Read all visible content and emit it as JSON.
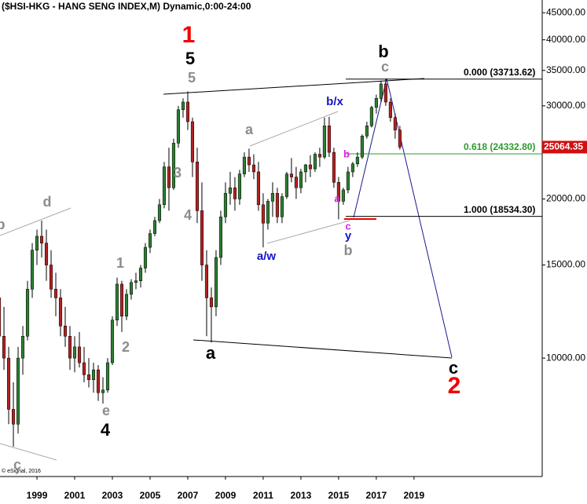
{
  "chart_data": {
    "type": "candlestick",
    "title": "($HSI-HKG - HANG SENG INDEX,M) Dynamic,0:00-24:00",
    "credit": "© eSignal, 2016",
    "log_scale": true,
    "up_color": "#2e7d32",
    "down_color": "#b22222",
    "x": [
      1997,
      1997.25,
      1997.5,
      1997.75,
      1998,
      1998.25,
      1998.5,
      1998.75,
      1999,
      1999.25,
      1999.5,
      1999.75,
      2000,
      2000.25,
      2000.5,
      2000.75,
      2001,
      2001.25,
      2001.5,
      2001.75,
      2002,
      2002.25,
      2002.5,
      2002.75,
      2003,
      2003.25,
      2003.5,
      2003.75,
      2004,
      2004.25,
      2004.5,
      2004.75,
      2005,
      2005.25,
      2005.5,
      2005.75,
      2006,
      2006.25,
      2006.5,
      2006.75,
      2007,
      2007.25,
      2007.5,
      2007.75,
      2008,
      2008.25,
      2008.5,
      2008.75,
      2009,
      2009.25,
      2009.5,
      2009.75,
      2010,
      2010.25,
      2010.5,
      2010.75,
      2011,
      2011.25,
      2011.5,
      2011.75,
      2012,
      2012.25,
      2012.5,
      2012.75,
      2013,
      2013.25,
      2013.5,
      2013.75,
      2014,
      2014.25,
      2014.5,
      2014.75,
      2015,
      2015.25,
      2015.5,
      2015.75,
      2016,
      2016.25,
      2016.5,
      2016.75,
      2017,
      2017.25,
      2017.5,
      2017.75,
      2018,
      2018.25
    ],
    "open": [
      13000,
      11000,
      10000,
      8000,
      7500,
      10000,
      11000,
      13500,
      16000,
      17000,
      16500,
      15000,
      13500,
      13000,
      11500,
      11000,
      10000,
      10500,
      9800,
      9300,
      9100,
      9500,
      8600,
      8700,
      9800,
      11800,
      13800,
      12000,
      13200,
      13900,
      14000,
      14800,
      16200,
      17200,
      18200,
      19500,
      23000,
      21000,
      25500,
      29500,
      30500,
      28000,
      23500,
      19000,
      15000,
      13000,
      12500,
      15500,
      18500,
      20500,
      21000,
      20000,
      22300,
      24000,
      23200,
      22500,
      19500,
      18000,
      19800,
      20500,
      18500,
      20200,
      22300,
      22000,
      21000,
      22500,
      23200,
      22800,
      24300,
      24000,
      27500,
      24500,
      21500,
      19800,
      20800,
      22500,
      23300,
      24000,
      26300,
      27500,
      29800,
      31000,
      33000,
      30500,
      28500,
      27000
    ],
    "high": [
      14000,
      12500,
      10500,
      9000,
      10500,
      11500,
      14000,
      16500,
      17500,
      18200,
      17500,
      16000,
      14500,
      13500,
      12500,
      11500,
      11000,
      11200,
      10500,
      10000,
      9800,
      9700,
      9200,
      10000,
      12000,
      14200,
      14000,
      13500,
      14100,
      14500,
      15000,
      16500,
      17500,
      18500,
      20000,
      23500,
      25000,
      26000,
      30000,
      31000,
      31950,
      28500,
      25000,
      21500,
      16000,
      13600,
      16000,
      19000,
      21500,
      22500,
      22000,
      22700,
      24500,
      24900,
      24300,
      23500,
      20500,
      20000,
      21500,
      21000,
      20500,
      22500,
      23900,
      23000,
      22800,
      23300,
      24200,
      24500,
      25000,
      28500,
      28600,
      25000,
      22000,
      21000,
      23000,
      23500,
      24500,
      26500,
      28000,
      30000,
      31500,
      33480,
      33700,
      31000,
      29000,
      27500
    ],
    "low": [
      10000,
      9500,
      7500,
      6800,
      7200,
      9300,
      10800,
      13000,
      15000,
      15500,
      14000,
      13000,
      12000,
      11000,
      10500,
      9500,
      9400,
      9600,
      9000,
      8800,
      8600,
      8300,
      8200,
      8600,
      9700,
      11500,
      11200,
      11800,
      12900,
      13500,
      13600,
      14500,
      15800,
      17000,
      18000,
      19200,
      19000,
      20800,
      25000,
      28500,
      27000,
      22000,
      18000,
      14000,
      11000,
      10700,
      12000,
      15000,
      18000,
      19500,
      19000,
      19500,
      22000,
      22500,
      21800,
      19000,
      16200,
      17500,
      18500,
      18000,
      18000,
      20000,
      21500,
      20000,
      20500,
      21500,
      22000,
      22500,
      23000,
      23800,
      24000,
      21000,
      18300,
      19500,
      20500,
      22000,
      23000,
      23800,
      26000,
      27300,
      29000,
      30500,
      30000,
      28000,
      26000,
      24800
    ],
    "close": [
      11000,
      10000,
      8000,
      7500,
      10000,
      11000,
      13500,
      16000,
      17000,
      16500,
      15000,
      13500,
      13000,
      11500,
      11000,
      10000,
      10500,
      9800,
      9300,
      9100,
      9500,
      8600,
      8700,
      9800,
      11800,
      13800,
      12000,
      13200,
      13900,
      14000,
      14800,
      16200,
      17200,
      18200,
      19500,
      23000,
      21000,
      25500,
      29500,
      30500,
      28000,
      23500,
      19000,
      15000,
      13000,
      12500,
      15500,
      18500,
      20500,
      21000,
      20000,
      22300,
      24000,
      23200,
      22500,
      19500,
      18000,
      19800,
      20500,
      18500,
      20200,
      22300,
      22000,
      21000,
      22500,
      23200,
      22800,
      24300,
      24000,
      27500,
      24500,
      21500,
      19800,
      20800,
      22500,
      23300,
      24000,
      26300,
      27500,
      29800,
      31000,
      33000,
      30500,
      28500,
      27000,
      25064.35
    ],
    "xlim": [
      1997.04,
      2025.8
    ],
    "ylim": [
      5970,
      47570
    ],
    "xticks": [
      1999,
      2001,
      2003,
      2005,
      2007,
      2009,
      2011,
      2013,
      2015,
      2017,
      2019
    ],
    "yticks": [
      {
        "value": 45000,
        "label": "45000.00"
      },
      {
        "value": 40000,
        "label": "40000.00"
      },
      {
        "value": 35000,
        "label": "35000.00"
      },
      {
        "value": 30000,
        "label": "30000.00"
      },
      {
        "value": 20000,
        "label": "20000.00"
      },
      {
        "value": 15000,
        "label": "15000.00"
      },
      {
        "value": 10000,
        "label": "10000.00"
      }
    ],
    "fib_levels": [
      {
        "value": 33713.62,
        "label": "0.000 (33713.62)"
      },
      {
        "value": 24332.8,
        "label": "0.618 (24332.80)"
      },
      {
        "value": 18534.3,
        "label": "1.000 (18534.30)"
      }
    ],
    "last_price": 25064.35,
    "annotations": [
      "1",
      "5",
      "5",
      "3",
      "4",
      "a",
      "a",
      "b/x",
      "a/w",
      "b",
      "a",
      "c",
      "y",
      "b",
      "b",
      "c",
      "c",
      "2",
      "1",
      "2",
      "e",
      "4",
      "d",
      "c",
      "b"
    ]
  }
}
